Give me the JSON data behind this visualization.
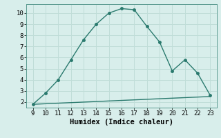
{
  "x": [
    9,
    10,
    11,
    12,
    13,
    14,
    15,
    16,
    17,
    18,
    19,
    20,
    21,
    22,
    23
  ],
  "y_upper": [
    1.8,
    2.8,
    4.0,
    5.8,
    7.6,
    9.0,
    10.0,
    10.4,
    10.3,
    8.8,
    7.4,
    4.8,
    5.8,
    4.6,
    2.6
  ],
  "y_lower": [
    1.8,
    1.85,
    1.9,
    1.95,
    2.0,
    2.05,
    2.1,
    2.15,
    2.2,
    2.25,
    2.3,
    2.35,
    2.4,
    2.45,
    2.5
  ],
  "line_color": "#2a7a6e",
  "bg_color": "#d8eeeb",
  "grid_color": "#c0ddd8",
  "xlabel": "Humidex (Indice chaleur)",
  "ylim": [
    1.5,
    10.8
  ],
  "xlim": [
    8.5,
    23.5
  ],
  "yticks": [
    2,
    3,
    4,
    5,
    6,
    7,
    8,
    9,
    10
  ],
  "xticks": [
    9,
    10,
    11,
    12,
    13,
    14,
    15,
    16,
    17,
    18,
    19,
    20,
    21,
    22,
    23
  ],
  "marker": "o",
  "marker_size": 2.5,
  "line_width": 1.0,
  "xlabel_fontsize": 7.5,
  "tick_fontsize": 6.5,
  "spine_color": "#5a9a90"
}
